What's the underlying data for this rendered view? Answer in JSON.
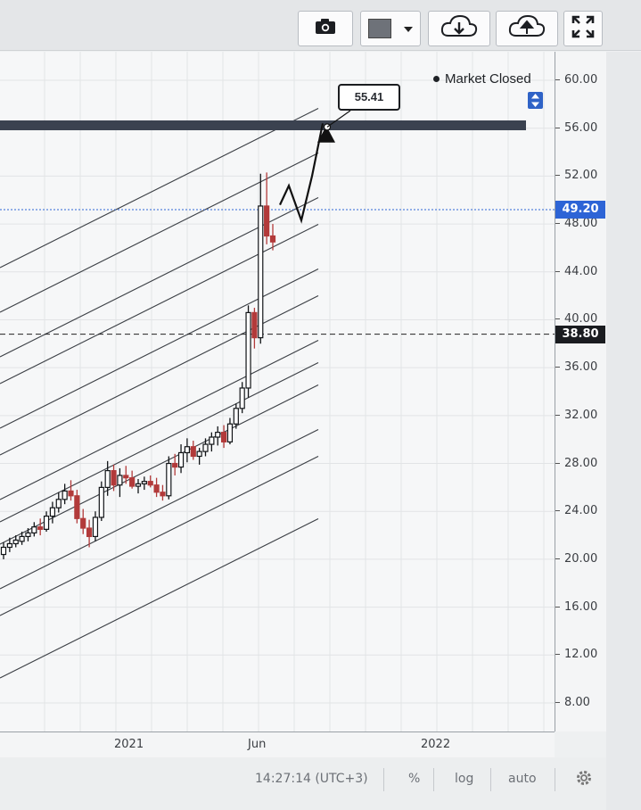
{
  "toolbar": {
    "buttons": [
      {
        "name": "camera-icon",
        "label": ""
      },
      {
        "name": "color-swatch-icon",
        "label": ""
      },
      {
        "name": "cloud-download-icon",
        "label": ""
      },
      {
        "name": "cloud-upload-icon",
        "label": ""
      },
      {
        "name": "fullscreen-icon",
        "label": ""
      }
    ],
    "swatch_color": "#6e7279"
  },
  "chart": {
    "market_status": "Market Closed",
    "callout_value": "55.41",
    "current_price_label": "49.20",
    "marker_price_label": "38.80",
    "price_ticks": [
      "60.00",
      "56.00",
      "52.00",
      "48.00",
      "44.00",
      "40.00",
      "36.00",
      "32.00",
      "28.00",
      "24.00",
      "20.00",
      "16.00",
      "12.00",
      "8.00"
    ],
    "time_ticks": [
      "2021",
      "Jun",
      "2022"
    ],
    "colors": {
      "current_price_bg": "#2d64d6",
      "marker_price_bg": "#1a1c20",
      "resistance_band": "#3b4250",
      "bull_candle": "#111417",
      "bear_candle": "#b23a3a"
    }
  },
  "chart_data": {
    "type": "candlestick",
    "ylim": [
      6.0,
      62.0
    ],
    "y_ticks": [
      60,
      56,
      52,
      48,
      44,
      40,
      36,
      32,
      28,
      24,
      20,
      16,
      12,
      8
    ],
    "x_ticks": [
      "2021",
      "Jun",
      "2022"
    ],
    "current_price": 49.2,
    "horizontal_level": 38.8,
    "resistance_level": 56.2,
    "projection_target": 55.41,
    "candles": [
      [
        20.4,
        21.4,
        20.0,
        21.0
      ],
      [
        21.0,
        21.8,
        20.6,
        21.3
      ],
      [
        21.3,
        22.0,
        21.0,
        21.6
      ],
      [
        21.5,
        22.3,
        21.2,
        21.9
      ],
      [
        21.9,
        22.6,
        21.5,
        22.2
      ],
      [
        22.2,
        23.1,
        21.9,
        22.7
      ],
      [
        22.7,
        23.4,
        22.0,
        22.5
      ],
      [
        22.5,
        24.0,
        22.3,
        23.6
      ],
      [
        23.6,
        24.8,
        23.0,
        24.3
      ],
      [
        24.3,
        25.6,
        23.9,
        25.0
      ],
      [
        25.0,
        26.3,
        24.6,
        25.7
      ],
      [
        25.7,
        26.6,
        24.9,
        25.3
      ],
      [
        25.3,
        25.8,
        23.0,
        23.4
      ],
      [
        23.4,
        24.2,
        22.1,
        22.6
      ],
      [
        22.6,
        23.3,
        21.0,
        21.9
      ],
      [
        21.9,
        24.0,
        21.5,
        23.5
      ],
      [
        23.5,
        26.5,
        23.2,
        26.0
      ],
      [
        26.0,
        28.2,
        25.3,
        27.4
      ],
      [
        27.4,
        27.9,
        25.7,
        26.2
      ],
      [
        26.2,
        27.6,
        25.2,
        27.0
      ],
      [
        27.0,
        27.8,
        26.3,
        26.8
      ],
      [
        26.8,
        27.4,
        25.9,
        26.1
      ],
      [
        26.1,
        26.7,
        25.5,
        26.3
      ],
      [
        26.3,
        26.9,
        25.8,
        26.5
      ],
      [
        26.5,
        27.0,
        26.0,
        26.2
      ],
      [
        26.2,
        26.8,
        25.2,
        25.6
      ],
      [
        25.6,
        26.2,
        24.9,
        25.3
      ],
      [
        25.3,
        28.6,
        25.0,
        28.0
      ],
      [
        28.0,
        28.8,
        27.0,
        27.7
      ],
      [
        27.7,
        29.6,
        27.2,
        28.9
      ],
      [
        28.9,
        30.1,
        28.1,
        29.4
      ],
      [
        29.4,
        29.9,
        28.3,
        28.6
      ],
      [
        28.6,
        29.3,
        27.9,
        29.0
      ],
      [
        29.0,
        30.1,
        28.6,
        29.6
      ],
      [
        29.6,
        30.6,
        29.0,
        30.2
      ],
      [
        30.2,
        31.1,
        29.5,
        30.6
      ],
      [
        30.6,
        31.2,
        29.3,
        29.8
      ],
      [
        29.8,
        31.8,
        29.6,
        31.3
      ],
      [
        31.3,
        33.0,
        30.9,
        32.6
      ],
      [
        32.6,
        34.8,
        32.2,
        34.3
      ],
      [
        34.3,
        41.2,
        33.5,
        40.6
      ],
      [
        40.6,
        41.0,
        37.6,
        38.5
      ],
      [
        38.5,
        52.2,
        38.0,
        49.5
      ],
      [
        49.5,
        52.3,
        46.3,
        47.0
      ],
      [
        47.0,
        48.0,
        45.8,
        46.5
      ]
    ]
  }
}
